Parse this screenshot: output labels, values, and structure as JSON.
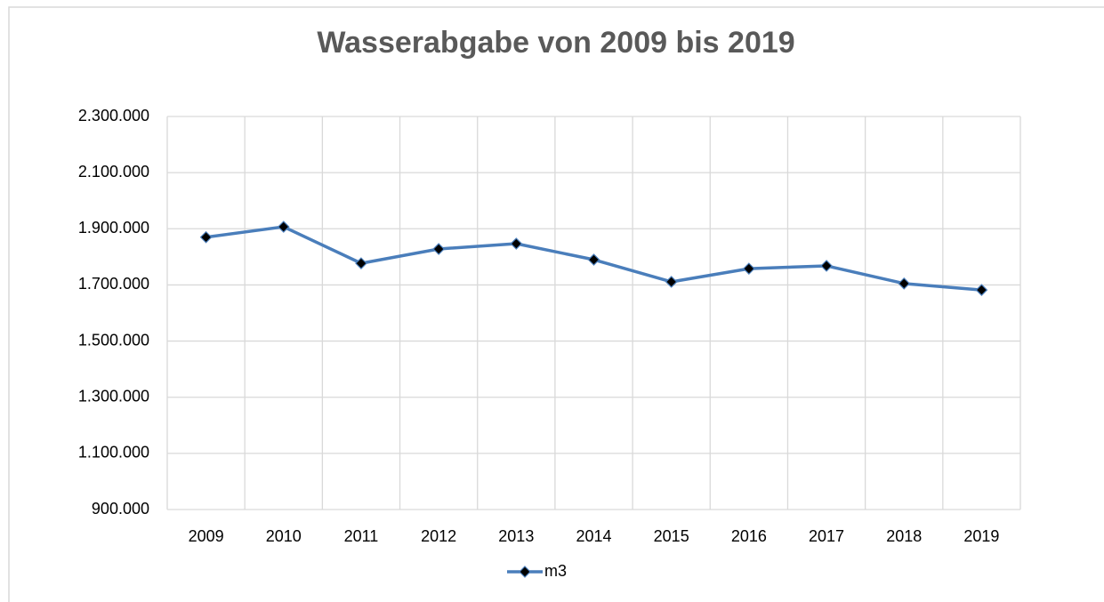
{
  "chart_data": {
    "type": "line",
    "title": "Wasserabgabe  von  2009  bis  2019",
    "categories": [
      "2009",
      "2010",
      "2011",
      "2012",
      "2013",
      "2014",
      "2015",
      "2016",
      "2017",
      "2018",
      "2019"
    ],
    "series": [
      {
        "name": "m3",
        "color": "#4a7ebb",
        "values": [
          1870000,
          1907000,
          1777000,
          1828000,
          1847000,
          1790000,
          1711000,
          1758000,
          1768000,
          1705000,
          1682000
        ]
      }
    ],
    "ylim": [
      900000,
      2300000
    ],
    "yticks": [
      {
        "value": 900000,
        "label": "900.000"
      },
      {
        "value": 1100000,
        "label": "1.100.000"
      },
      {
        "value": 1300000,
        "label": "1.300.000"
      },
      {
        "value": 1500000,
        "label": "1.500.000"
      },
      {
        "value": 1700000,
        "label": "1.700.000"
      },
      {
        "value": 1900000,
        "label": "1.900.000"
      },
      {
        "value": 2100000,
        "label": "2.100.000"
      },
      {
        "value": 2300000,
        "label": "2.300.000"
      }
    ],
    "grid": true,
    "legend": "bottom"
  }
}
